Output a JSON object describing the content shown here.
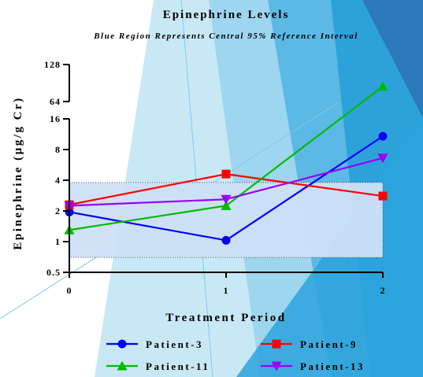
{
  "chart_data": {
    "type": "line",
    "title": "Epinephrine Levels",
    "subtitle": "Blue Region Represents Central 95% Reference Interval",
    "xlabel": "Treatment Period",
    "ylabel": "Epinephrine (µg/g Cr)",
    "y_scale": "log2",
    "y_axis_break": [
      16,
      64
    ],
    "x_ticks": [
      0,
      1,
      2
    ],
    "y_ticks_lower": [
      0.5,
      1,
      2,
      4,
      8,
      16
    ],
    "y_ticks_upper": [
      64,
      128
    ],
    "xlim": [
      0,
      2
    ],
    "ylim_lower": [
      0.5,
      16
    ],
    "ylim_upper": [
      64,
      128
    ],
    "reference_interval": [
      0.7,
      3.8
    ],
    "legend_position": "bottom",
    "series": [
      {
        "name": "Patient-3",
        "color": "#0000ff",
        "marker": "circle",
        "x": [
          0,
          1,
          2
        ],
        "y": [
          1.95,
          1.03,
          10.8
        ]
      },
      {
        "name": "Patient-9",
        "color": "#ff0000",
        "marker": "square",
        "x": [
          0,
          1,
          2
        ],
        "y": [
          2.3,
          4.6,
          2.8
        ]
      },
      {
        "name": "Patient-11",
        "color": "#00bb00",
        "marker": "triangle-up",
        "x": [
          0,
          1,
          2
        ],
        "y": [
          1.3,
          2.25,
          85
        ]
      },
      {
        "name": "Patient-13",
        "color": "#9900ff",
        "marker": "triangle-down",
        "x": [
          0,
          1,
          2
        ],
        "y": [
          2.25,
          2.6,
          6.6
        ]
      }
    ]
  }
}
